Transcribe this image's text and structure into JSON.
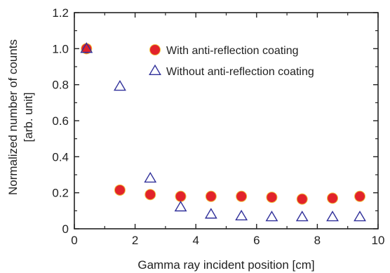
{
  "colors": {
    "with_fill": "#e2232a",
    "with_edge": "#f0c040",
    "without_stroke": "#30309a",
    "axis": "#222222"
  },
  "chart_data": {
    "type": "scatter",
    "xlabel": "Gamma ray incident position [cm]",
    "ylabel_line1": "Normalized number of counts",
    "ylabel_line2": "[arb. unit]",
    "xlim": [
      0,
      10
    ],
    "ylim": [
      0,
      1.2
    ],
    "xticks": [
      0,
      2,
      4,
      6,
      8,
      10
    ],
    "yticks": [
      0,
      0.2,
      0.4,
      0.6,
      0.8,
      1.0,
      1.2
    ],
    "xtick_labels": [
      "0",
      "2",
      "4",
      "6",
      "8",
      "10"
    ],
    "ytick_labels": [
      "0",
      "0.2",
      "0.4",
      "0.6",
      "0.8",
      "1.0",
      "1.2"
    ],
    "grid": false,
    "legend_position": "top-right",
    "series": [
      {
        "name": "With anti-reflection coating",
        "marker": "filled-circle",
        "x": [
          0.4,
          1.5,
          2.5,
          3.5,
          4.5,
          5.5,
          6.5,
          7.5,
          8.5,
          9.4
        ],
        "y": [
          1.0,
          0.215,
          0.19,
          0.18,
          0.18,
          0.18,
          0.175,
          0.165,
          0.17,
          0.18
        ]
      },
      {
        "name": "Without anti-reflection coating",
        "marker": "open-triangle",
        "x": [
          0.4,
          1.5,
          2.5,
          3.5,
          4.5,
          5.5,
          6.5,
          7.5,
          8.5,
          9.4
        ],
        "y": [
          1.0,
          0.79,
          0.28,
          0.12,
          0.08,
          0.07,
          0.065,
          0.065,
          0.065,
          0.065
        ]
      }
    ]
  }
}
